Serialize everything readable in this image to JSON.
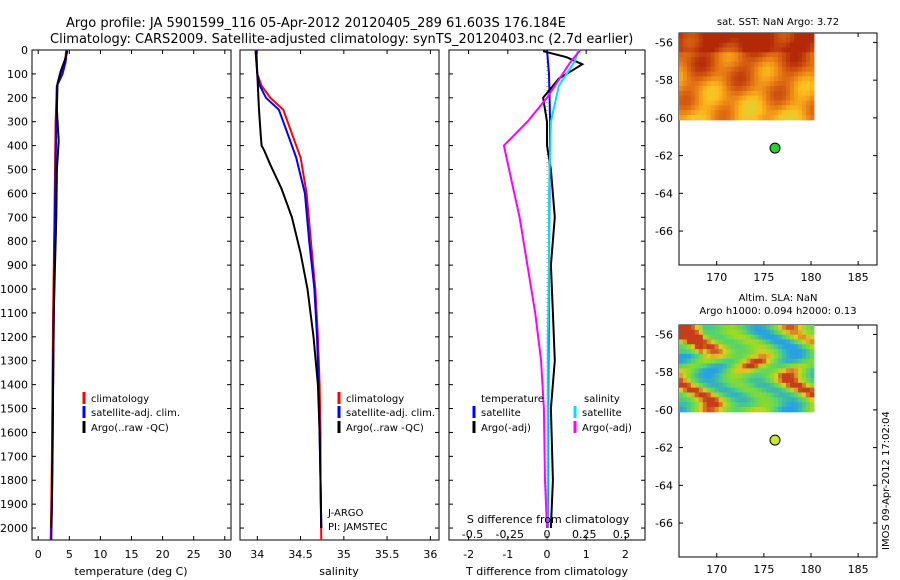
{
  "title_line1": "Argo profile: JA 5901599_116 05-Apr-2012 20120405_289 61.603S 176.184E",
  "title_line2": "Climatology: CARS2009. Satellite-adjusted climatology: synTS_20120403.nc (2.7d earlier)",
  "side_stamp": "IMOS 09-Apr-2012 17:02:04",
  "colors": {
    "climatology": "#ff0000",
    "satellite": "#0000ff",
    "argo": "#000000",
    "salinity_sat": "#00e0ff",
    "salinity_argo": "#ff00ff",
    "map_marker_sst": "#2ecc2e",
    "map_marker_sla": "#c8e830"
  },
  "legend_common": {
    "climatology": "climatology",
    "satellite": "satellite-adj. clim.",
    "argo": "Argo(..raw -QC)"
  },
  "legend_diff": {
    "temp_header": "temperature",
    "sal_header": "salinity",
    "satellite": "satellite",
    "argo": "Argo(-adj)"
  },
  "institution": {
    "line1": "J-ARGO",
    "line2": "PI: JAMSTEC"
  },
  "chart_data": [
    {
      "type": "line",
      "xlabel": "temperature (deg C)",
      "xlim": [
        -1,
        31
      ],
      "xticks": [
        0,
        5,
        10,
        15,
        20,
        25,
        30
      ],
      "ylim": [
        2050,
        0
      ],
      "yticks": [
        0,
        100,
        200,
        300,
        400,
        500,
        600,
        700,
        800,
        900,
        1000,
        1100,
        1200,
        1300,
        1400,
        1500,
        1600,
        1700,
        1800,
        1900,
        2000
      ],
      "series": [
        {
          "name": "climatology",
          "x": [
            4.5,
            4.3,
            3.8,
            3.0,
            2.8,
            2.7,
            2.6,
            2.5,
            2.4,
            2.3,
            2.2,
            2.1,
            2.0
          ],
          "y": [
            0,
            50,
            100,
            150,
            300,
            500,
            700,
            900,
            1100,
            1400,
            1700,
            1900,
            2050
          ]
        },
        {
          "name": "satellite-adj. clim.",
          "x": [
            4.6,
            4.4,
            3.9,
            3.0,
            2.9,
            2.8,
            2.7,
            2.6,
            2.5,
            2.4,
            2.3,
            2.2,
            2.1
          ],
          "y": [
            0,
            50,
            100,
            150,
            300,
            500,
            700,
            900,
            1100,
            1400,
            1700,
            1900,
            2050
          ]
        },
        {
          "name": "Argo(..raw -QC)",
          "x": [
            4.7,
            4.3,
            3.6,
            3.1,
            3.0,
            3.3,
            3.2,
            3.0,
            2.9,
            2.7,
            2.5,
            2.4,
            2.3,
            2.2,
            2.1
          ],
          "y": [
            5,
            40,
            90,
            140,
            250,
            380,
            420,
            500,
            700,
            900,
            1100,
            1400,
            1700,
            1900,
            2000
          ]
        }
      ]
    },
    {
      "type": "line",
      "xlabel": "salinity",
      "xlim": [
        33.8,
        36.1
      ],
      "xticks": [
        34,
        34.5,
        35,
        35.5,
        36
      ],
      "ylim": [
        2050,
        0
      ],
      "series": [
        {
          "name": "climatology",
          "x": [
            33.98,
            34.0,
            34.05,
            34.15,
            34.3,
            34.4,
            34.5,
            34.57,
            34.62,
            34.67,
            34.7,
            34.72,
            34.73,
            34.73,
            34.74
          ],
          "y": [
            0,
            100,
            150,
            200,
            250,
            350,
            450,
            600,
            800,
            1000,
            1200,
            1400,
            1600,
            1800,
            2050
          ]
        },
        {
          "name": "satellite-adj. clim.",
          "x": [
            33.99,
            34.0,
            34.03,
            34.1,
            34.25,
            34.35,
            34.45,
            34.55,
            34.6,
            34.66,
            34.69,
            34.71,
            34.72,
            34.73,
            34.74
          ],
          "y": [
            0,
            100,
            150,
            200,
            250,
            350,
            450,
            600,
            800,
            1000,
            1200,
            1400,
            1600,
            1800,
            2000
          ]
        },
        {
          "name": "Argo(..raw -QC)",
          "x": [
            33.98,
            34.0,
            34.02,
            34.04,
            34.05,
            34.08,
            34.15,
            34.28,
            34.4,
            34.5,
            34.58,
            34.65,
            34.7,
            34.72,
            34.73,
            34.74
          ],
          "y": [
            5,
            100,
            250,
            360,
            400,
            420,
            480,
            580,
            700,
            850,
            1000,
            1200,
            1400,
            1600,
            1800,
            2000
          ]
        }
      ]
    },
    {
      "type": "line",
      "xlabel": "T difference from climatology",
      "xlabel_top": "S difference from climatology",
      "xlim": [
        -2.5,
        2.5
      ],
      "xticks": [
        -2,
        -1,
        0,
        1,
        2
      ],
      "xticks_top_labels": [
        "-0.5",
        "-0.25",
        "0",
        "0.25",
        "0.5"
      ],
      "xticks_top_values": [
        -1.9,
        -0.95,
        0,
        0.95,
        1.9
      ],
      "ylim": [
        2050,
        0
      ],
      "series": [
        {
          "name": "temperature satellite",
          "x": [
            0.0,
            0.05,
            0.08,
            0.06,
            0.05,
            0.04,
            0.03,
            0.03,
            0.02,
            0.02
          ],
          "y": [
            0,
            100,
            300,
            600,
            900,
            1200,
            1500,
            1800,
            1950,
            2000
          ]
        },
        {
          "name": "temperature Argo(-adj)",
          "x": [
            -0.1,
            0.5,
            0.9,
            0.3,
            -0.1,
            0.0,
            0.0,
            0.1,
            0.2,
            0.1,
            0.15,
            0.2,
            0.1,
            0.15,
            0.1
          ],
          "y": [
            5,
            30,
            60,
            120,
            200,
            300,
            400,
            500,
            700,
            900,
            1100,
            1300,
            1500,
            1800,
            2000
          ]
        },
        {
          "name": "salinity satellite",
          "x": [
            0.8,
            0.7,
            0.3,
            0.1,
            0.05,
            0.05,
            0.02,
            0.02,
            0.02,
            0.01
          ],
          "y": [
            0,
            50,
            150,
            300,
            600,
            900,
            1200,
            1500,
            1800,
            2000
          ]
        },
        {
          "name": "salinity Argo(-adj)",
          "x": [
            0.85,
            0.6,
            0.0,
            -0.5,
            -1.1,
            -0.9,
            -0.7,
            -0.5,
            -0.3,
            -0.15,
            -0.08,
            -0.05,
            0.0
          ],
          "y": [
            0,
            50,
            200,
            300,
            400,
            550,
            700,
            900,
            1100,
            1300,
            1500,
            1800,
            2000
          ]
        }
      ]
    },
    {
      "type": "heatmap",
      "title": "sat. SST: NaN Argo: 3.72",
      "xticks": [
        170,
        175,
        180,
        185
      ],
      "yticks": [
        -56,
        -58,
        -60,
        -62,
        -64,
        -66
      ],
      "xlim": [
        166,
        187
      ],
      "ylim": [
        -67.8,
        -55.5
      ],
      "field_extent": {
        "lon": [
          166,
          180.3
        ],
        "lat": [
          -60.1,
          -55.5
        ]
      },
      "marker": {
        "lon": 176.184,
        "lat": -61.603
      }
    },
    {
      "type": "heatmap",
      "title_line1": "Altim. SLA: NaN",
      "title_line2": "Argo h1000: 0.094 h2000: 0.13",
      "xticks": [
        170,
        175,
        180,
        185
      ],
      "yticks": [
        -56,
        -58,
        -60,
        -62,
        -64,
        -66
      ],
      "xlim": [
        166,
        187
      ],
      "ylim": [
        -67.8,
        -55.5
      ],
      "field_extent": {
        "lon": [
          166,
          180.3
        ],
        "lat": [
          -60.1,
          -55.5
        ]
      },
      "marker": {
        "lon": 176.184,
        "lat": -61.603
      }
    }
  ]
}
